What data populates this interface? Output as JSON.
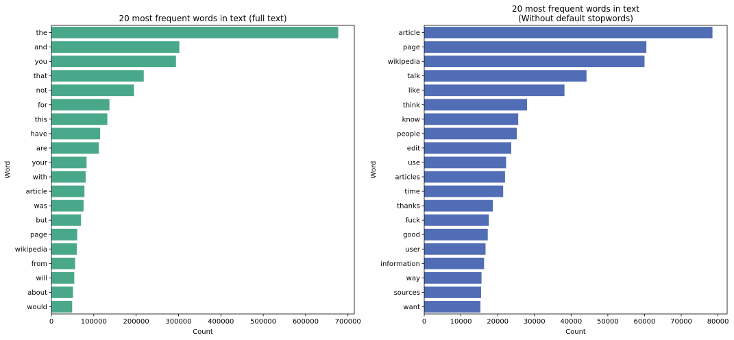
{
  "chart_data": [
    {
      "type": "bar",
      "orientation": "horizontal",
      "title": "20 most frequent words in text (full text)",
      "xlabel": "Count",
      "ylabel": "Word",
      "color": "#4aa88a",
      "xlim": [
        0,
        715000
      ],
      "xticks": [
        0,
        100000,
        200000,
        300000,
        400000,
        500000,
        600000,
        700000
      ],
      "grid": false,
      "categories": [
        "the",
        "and",
        "you",
        "that",
        "not",
        "for",
        "this",
        "have",
        "are",
        "your",
        "with",
        "article",
        "was",
        "but",
        "page",
        "wikipedia",
        "from",
        "will",
        "about",
        "would"
      ],
      "values": [
        677000,
        302000,
        294000,
        218000,
        195000,
        137000,
        132000,
        115000,
        112000,
        83000,
        81000,
        78000,
        76000,
        70000,
        61000,
        60000,
        56000,
        54000,
        51000,
        49000
      ]
    },
    {
      "type": "bar",
      "orientation": "horizontal",
      "title": "20 most frequent words in text\n(Without default stopwords)",
      "xlabel": "Count",
      "ylabel": "Word",
      "color": "#506db5",
      "xlim": [
        0,
        82500
      ],
      "xticks": [
        0,
        10000,
        20000,
        30000,
        40000,
        50000,
        60000,
        70000,
        80000
      ],
      "grid": false,
      "categories": [
        "article",
        "page",
        "wikipedia",
        "talk",
        "like",
        "think",
        "know",
        "people",
        "edit",
        "use",
        "articles",
        "time",
        "thanks",
        "fuck",
        "good",
        "user",
        "information",
        "way",
        "sources",
        "want"
      ],
      "values": [
        78500,
        60500,
        60000,
        44200,
        38200,
        28000,
        25600,
        25200,
        23700,
        22300,
        22000,
        21500,
        18700,
        17600,
        17300,
        16700,
        16300,
        15600,
        15500,
        15300
      ]
    }
  ]
}
